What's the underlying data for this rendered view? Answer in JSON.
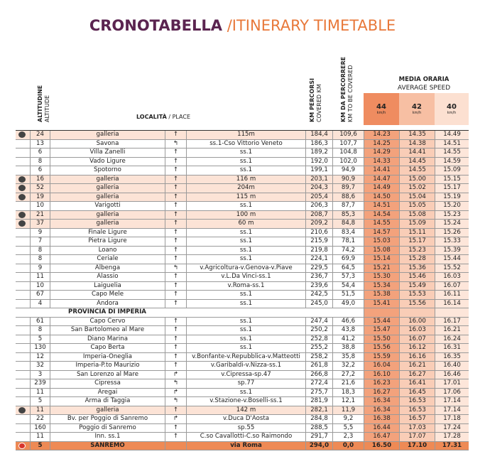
{
  "header": {
    "title": "CRONOTABELLA",
    "separator": "/",
    "subtitle": "ITINERARY TIMETABLE"
  },
  "columns": {
    "altitude": "ALTITUDINE",
    "altitude_en": "ALTITUDE",
    "place": "LOCALITÀ",
    "place_sep": "/",
    "place_en": "PLACE",
    "km_covered": "KM PERCORSI",
    "km_covered_en": "COVERED KM",
    "km_remaining": "KM DA PERCORRERE",
    "km_remaining_en": "KM TO BE COVERED",
    "speed": "MEDIA ORARIA",
    "speed_en": "AVERAGE SPEED",
    "speeds": [
      {
        "value": "44",
        "unit": "km/h"
      },
      {
        "value": "42",
        "unit": "km/h"
      },
      {
        "value": "40",
        "unit": "km/h"
      }
    ]
  },
  "table": {
    "rows_savona": [
      [
        "24",
        "galleria",
        "↑",
        "115m",
        "184,4",
        "109,6",
        "14.23",
        "14.35",
        "14.49"
      ],
      [
        "13",
        "Savona",
        "↰",
        "ss.1-Cso Vittorio Veneto",
        "186,3",
        "107,7",
        "14.25",
        "14.38",
        "14.51"
      ],
      [
        "6",
        "Villa Zanelli",
        "↑",
        "ss.1",
        "189,2",
        "104,8",
        "14.29",
        "14.41",
        "14.55"
      ],
      [
        "8",
        "Vado Ligure",
        "↑",
        "ss.1",
        "192,0",
        "102,0",
        "14.33",
        "14.45",
        "14.59"
      ],
      [
        "6",
        "Spotorno",
        "↑",
        "ss.1",
        "199,1",
        "94,9",
        "14.41",
        "14.55",
        "15.09"
      ],
      [
        "16",
        "galleria",
        "↑",
        "116 m",
        "203,1",
        "90,9",
        "14.47",
        "15.00",
        "15.15"
      ],
      [
        "52",
        "galleria",
        "↑",
        "204m",
        "204,3",
        "89,7",
        "14.49",
        "15.02",
        "15.17"
      ],
      [
        "19",
        "galleria",
        "↑",
        "115 m",
        "205,4",
        "88,6",
        "14.50",
        "15.04",
        "15.19"
      ],
      [
        "10",
        "Varigotti",
        "↑",
        "ss.1",
        "206,3",
        "87,7",
        "14.51",
        "15.05",
        "15.20"
      ],
      [
        "21",
        "galleria",
        "↑",
        "100 m",
        "208,7",
        "85,3",
        "14.54",
        "15.08",
        "15.23"
      ],
      [
        "37",
        "galleria",
        "↑",
        "60 m",
        "209,2",
        "84,8",
        "14.55",
        "15.09",
        "15.24"
      ],
      [
        "9",
        "Finale Ligure",
        "↑",
        "ss.1",
        "210,6",
        "83,4",
        "14.57",
        "15.11",
        "15.26"
      ],
      [
        "7",
        "Pietra Ligure",
        "↑",
        "ss.1",
        "215,9",
        "78,1",
        "15.03",
        "15.17",
        "15.33"
      ],
      [
        "8",
        "Loano",
        "↑",
        "ss.1",
        "219,8",
        "74,2",
        "15.08",
        "15.23",
        "15.39"
      ],
      [
        "8",
        "Ceriale",
        "↑",
        "ss.1",
        "224,1",
        "69,9",
        "15.14",
        "15.28",
        "15.44"
      ],
      [
        "9",
        "Albenga",
        "↰",
        "v.Agricoltura-v.Genova-v.Piave",
        "229,5",
        "64,5",
        "15.21",
        "15.36",
        "15.52"
      ],
      [
        "11",
        "Alassio",
        "↑",
        "v.L.Da Vinci-ss.1",
        "236,7",
        "57,3",
        "15.30",
        "15.46",
        "16.03"
      ],
      [
        "10",
        "Laiguelia",
        "↑",
        "v.Roma-ss.1",
        "239,6",
        "54,4",
        "15.34",
        "15.49",
        "16.07"
      ],
      [
        "67",
        "Capo Mele",
        "↑",
        "ss.1",
        "242,5",
        "51,5",
        "15.38",
        "15.53",
        "16.11"
      ],
      [
        "4",
        "Andora",
        "↑",
        "ss.1",
        "245,0",
        "49,0",
        "15.41",
        "15.56",
        "16.14"
      ]
    ],
    "section": "PROVINCIA DI IMPERIA",
    "rows_imperia": [
      [
        "61",
        "Capo Cervo",
        "↑",
        "ss.1",
        "247,4",
        "46,6",
        "15.44",
        "16.00",
        "16.17"
      ],
      [
        "8",
        "San Bartolomeo al Mare",
        "↑",
        "ss.1",
        "250,2",
        "43,8",
        "15.47",
        "16.03",
        "16.21"
      ],
      [
        "5",
        "Diano Marina",
        "↑",
        "ss.1",
        "252,8",
        "41,2",
        "15.50",
        "16.07",
        "16.24"
      ],
      [
        "130",
        "Capo Berta",
        "↑",
        "ss.1",
        "255,2",
        "38,8",
        "15.56",
        "16.12",
        "16.31"
      ],
      [
        "12",
        "Imperia-Oneglia",
        "↑",
        "v.Bonfante-v.Repubblica-v.Matteotti",
        "258,2",
        "35,8",
        "15.59",
        "16.16",
        "16.35"
      ],
      [
        "32",
        "Imperia-P.to Maurizio",
        "↑",
        "v.Garibaldi-v.Nizza-ss.1",
        "261,8",
        "32,2",
        "16.04",
        "16.21",
        "16.40"
      ],
      [
        "3",
        "San Lorenzo al Mare",
        "↱",
        "v.Cipressa-sp.47",
        "266,8",
        "27,2",
        "16.10",
        "16.27",
        "16.46"
      ],
      [
        "239",
        "Cipressa",
        "↰",
        "sp.77",
        "272,4",
        "21,6",
        "16.23",
        "16.41",
        "17.01"
      ],
      [
        "11",
        "Aregai",
        "↱",
        "ss.1",
        "275,7",
        "18,3",
        "16.27",
        "16.45",
        "17.06"
      ],
      [
        "5",
        "Arma di Taggia",
        "↰",
        "v.Stazione-v.Boselli-ss.1",
        "281,9",
        "12,1",
        "16.34",
        "16.53",
        "17.14"
      ],
      [
        "11",
        "galleria",
        "↑",
        "142 m",
        "282,1",
        "11,9",
        "16.34",
        "16.53",
        "17.14"
      ],
      [
        "22",
        "Bv. per Poggio di Sanremo",
        "↱",
        "v.Duca D'Aosta",
        "284,8",
        "9,2",
        "16.38",
        "16.57",
        "17.18"
      ],
      [
        "160",
        "Poggio di Sanremo",
        "↑",
        "sp.55",
        "288,5",
        "5,5",
        "16.44",
        "17.03",
        "17.24"
      ],
      [
        "11",
        "Inn. ss.1",
        "↑",
        "C.so Cavallotti-C.so Raimondo",
        "291,7",
        "2,3",
        "16.47",
        "17.07",
        "17.28"
      ]
    ],
    "finish": [
      "5",
      "SANREMO",
      null,
      "via Roma",
      "294,0",
      "0,0",
      "16.50",
      "17.10",
      "17.31"
    ]
  }
}
